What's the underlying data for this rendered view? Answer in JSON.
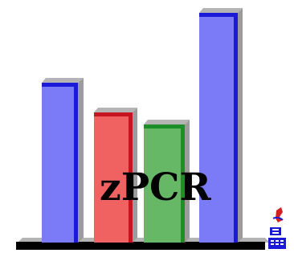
{
  "logo": {
    "wordmark": "zPCR",
    "colors": {
      "blue_fill": "#7b7bf7",
      "blue_edge": "#1a1ad8",
      "red_fill": "#f06262",
      "red_edge": "#c8141e",
      "green_fill": "#66b866",
      "green_edge": "#1c8f2a",
      "shadow": "#b4b4b4",
      "base": "#000000",
      "text": "#000000"
    },
    "badge_icon": "ibm-tools-badge-icon"
  }
}
